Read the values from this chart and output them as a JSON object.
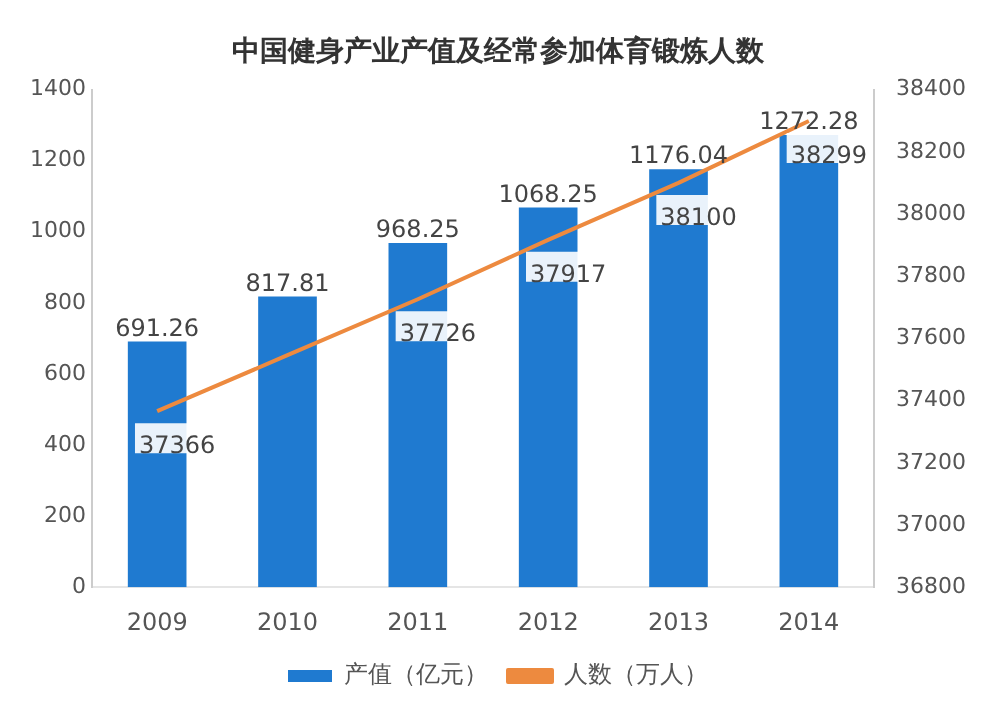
{
  "chart_data": {
    "type": "bar",
    "title": "中国健身产业产值及经常参加体育锻炼人数",
    "categories": [
      "2009",
      "2010",
      "2011",
      "2012",
      "2013",
      "2014"
    ],
    "series": [
      {
        "name": "产值（亿元）",
        "color": "#1f7ad0",
        "values": [
          691.26,
          817.81,
          968.25,
          1068.25,
          1176.04,
          1272.28
        ],
        "value_labels": [
          "691.26",
          "817.81",
          "968.25",
          "1068.25",
          "1176.04",
          "1272.28"
        ]
      },
      {
        "name": "人数（万人）",
        "type": "line",
        "axis": "y2",
        "color": "#ed8a3f",
        "values": [
          37366,
          37546,
          37726,
          37917,
          38100,
          38299
        ],
        "value_labels": [
          "37366",
          null,
          "37726",
          "37917",
          "38100",
          "38299"
        ]
      }
    ],
    "ylim": [
      0,
      1400
    ],
    "yticks": [
      0,
      200,
      400,
      600,
      800,
      1000,
      1200,
      1400
    ],
    "y2lim": [
      36800,
      38400
    ],
    "y2ticks": [
      36800,
      37000,
      37200,
      37400,
      37600,
      37800,
      38000,
      38200,
      38400
    ],
    "legend": "bottom",
    "marker": "none",
    "grid": false
  }
}
